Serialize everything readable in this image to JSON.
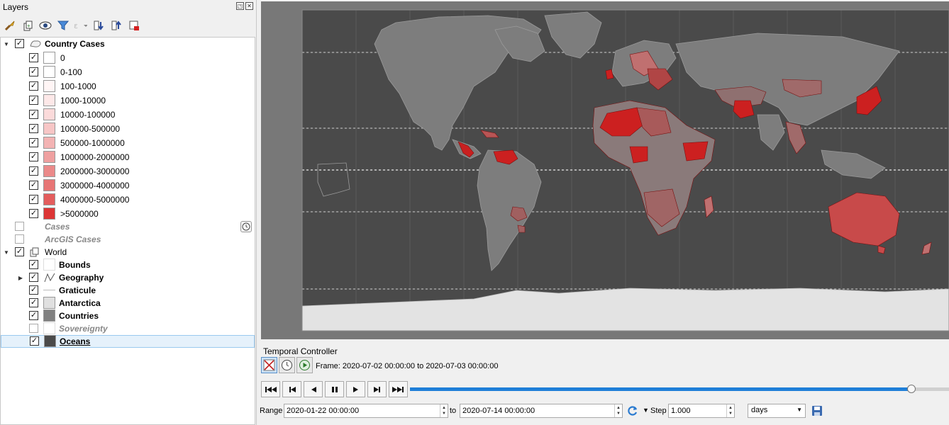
{
  "panel": {
    "title": "Layers",
    "float_glyph": "◳",
    "close_glyph": "✕"
  },
  "tree": {
    "country_cases": {
      "label": "Country Cases",
      "items": [
        {
          "label": "0",
          "color": "#ffffff"
        },
        {
          "label": "0-100",
          "color": "#ffffff"
        },
        {
          "label": "100-1000",
          "color": "#fff5f5"
        },
        {
          "label": "1000-10000",
          "color": "#fde8e8"
        },
        {
          "label": "10000-100000",
          "color": "#fbdada"
        },
        {
          "label": "100000-500000",
          "color": "#f7c6c6"
        },
        {
          "label": "500000-1000000",
          "color": "#f3b3b3"
        },
        {
          "label": "1000000-2000000",
          "color": "#efa0a0"
        },
        {
          "label": "2000000-3000000",
          "color": "#eb8a8a"
        },
        {
          "label": "3000000-4000000",
          "color": "#e77575"
        },
        {
          "label": "4000000-5000000",
          "color": "#e35d5d"
        },
        {
          "label": ">5000000",
          "color": "#dc3535"
        }
      ]
    },
    "cases": {
      "label": "Cases"
    },
    "arcgis_cases": {
      "label": "ArcGIS Cases"
    },
    "world": {
      "label": "World",
      "items": [
        {
          "label": "Bounds",
          "checked": true
        },
        {
          "label": "Geography",
          "checked": true
        },
        {
          "label": "Graticule",
          "checked": true
        },
        {
          "label": "Antarctica",
          "checked": true,
          "color": "#e0e0e0"
        },
        {
          "label": "Countries",
          "checked": true,
          "color": "#808080"
        },
        {
          "label": "Sovereignty",
          "checked": false
        },
        {
          "label": "Oceans",
          "checked": true,
          "color": "#4a4a4a"
        }
      ]
    }
  },
  "temporal": {
    "title": "Temporal Controller",
    "frame_text": "Frame: 2020-07-02 00:00:00 to 2020-07-03 00:00:00",
    "progress": 0.93,
    "range_label": "Range",
    "range_start": "2020-01-22 00:00:00",
    "to_label": "to",
    "range_end": "2020-07-14 00:00:00",
    "step_label": "Step",
    "step_value": "1.000",
    "step_unit": "days"
  },
  "colors": {
    "ocean": "#4a4a4a",
    "land": "#7d7d7d",
    "antarctica": "#e3e3e3",
    "accent": "#1f7fd8"
  }
}
